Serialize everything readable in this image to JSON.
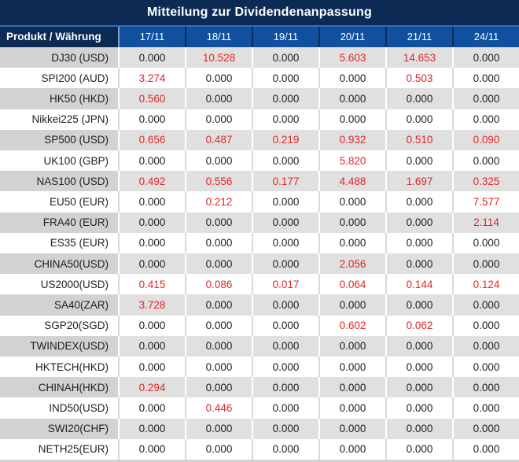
{
  "title": "Mitteilung zur Dividendenanpassung",
  "header": {
    "product_label": "Produkt / Währung",
    "dates": [
      "17/11",
      "18/11",
      "19/11",
      "20/11",
      "21/11",
      "24/11"
    ]
  },
  "colors": {
    "navy": "#0d2a55",
    "blue": "#10509e",
    "red": "#e12626",
    "ink": "#1e1e1e",
    "grayLabel": "#d2d2d2",
    "grayVal": "#e0e0e0"
  },
  "rows": [
    {
      "product": "DJ30 (USD)",
      "values": [
        "0.000",
        "10.528",
        "0.000",
        "5.603",
        "14.653",
        "0.000"
      ],
      "red": [
        0,
        1,
        0,
        1,
        1,
        0
      ]
    },
    {
      "product": "SPI200 (AUD)",
      "values": [
        "3.274",
        "0.000",
        "0.000",
        "0.000",
        "0.503",
        "0.000"
      ],
      "red": [
        1,
        0,
        0,
        0,
        1,
        0
      ]
    },
    {
      "product": "HK50 (HKD)",
      "values": [
        "0.560",
        "0.000",
        "0.000",
        "0.000",
        "0.000",
        "0.000"
      ],
      "red": [
        1,
        0,
        0,
        0,
        0,
        0
      ]
    },
    {
      "product": "Nikkei225 (JPN)",
      "values": [
        "0.000",
        "0.000",
        "0.000",
        "0.000",
        "0.000",
        "0.000"
      ],
      "red": [
        0,
        0,
        0,
        0,
        0,
        0
      ]
    },
    {
      "product": "SP500 (USD)",
      "values": [
        "0.656",
        "0.487",
        "0.219",
        "0.932",
        "0.510",
        "0.090"
      ],
      "red": [
        1,
        1,
        1,
        1,
        1,
        1
      ]
    },
    {
      "product": "UK100 (GBP)",
      "values": [
        "0.000",
        "0.000",
        "0.000",
        "5.820",
        "0.000",
        "0.000"
      ],
      "red": [
        0,
        0,
        0,
        1,
        0,
        0
      ]
    },
    {
      "product": "NAS100 (USD)",
      "values": [
        "0.492",
        "0.556",
        "0.177",
        "4.488",
        "1.697",
        "0.325"
      ],
      "red": [
        1,
        1,
        1,
        1,
        1,
        1
      ]
    },
    {
      "product": "EU50 (EUR)",
      "values": [
        "0.000",
        "0.212",
        "0.000",
        "0.000",
        "0.000",
        "7.577"
      ],
      "red": [
        0,
        1,
        0,
        0,
        0,
        1
      ]
    },
    {
      "product": "FRA40 (EUR)",
      "values": [
        "0.000",
        "0.000",
        "0.000",
        "0.000",
        "0.000",
        "2.114"
      ],
      "red": [
        0,
        0,
        0,
        0,
        0,
        1
      ]
    },
    {
      "product": "ES35 (EUR)",
      "values": [
        "0.000",
        "0.000",
        "0.000",
        "0.000",
        "0.000",
        "0.000"
      ],
      "red": [
        0,
        0,
        0,
        0,
        0,
        0
      ]
    },
    {
      "product": "CHINA50(USD)",
      "values": [
        "0.000",
        "0.000",
        "0.000",
        "2.056",
        "0.000",
        "0.000"
      ],
      "red": [
        0,
        0,
        0,
        1,
        0,
        0
      ]
    },
    {
      "product": "US2000(USD)",
      "values": [
        "0.415",
        "0.086",
        "0.017",
        "0.064",
        "0.144",
        "0.124"
      ],
      "red": [
        1,
        1,
        1,
        1,
        1,
        1
      ]
    },
    {
      "product": "SA40(ZAR)",
      "values": [
        "3.728",
        "0.000",
        "0.000",
        "0.000",
        "0.000",
        "0.000"
      ],
      "red": [
        1,
        0,
        0,
        0,
        0,
        0
      ]
    },
    {
      "product": "SGP20(SGD)",
      "values": [
        "0.000",
        "0.000",
        "0.000",
        "0.602",
        "0.062",
        "0.000"
      ],
      "red": [
        0,
        0,
        0,
        1,
        1,
        0
      ]
    },
    {
      "product": "TWINDEX(USD)",
      "values": [
        "0.000",
        "0.000",
        "0.000",
        "0.000",
        "0.000",
        "0.000"
      ],
      "red": [
        0,
        0,
        0,
        0,
        0,
        0
      ]
    },
    {
      "product": "HKTECH(HKD)",
      "values": [
        "0.000",
        "0.000",
        "0.000",
        "0.000",
        "0.000",
        "0.000"
      ],
      "red": [
        0,
        0,
        0,
        0,
        0,
        0
      ]
    },
    {
      "product": "CHINAH(HKD)",
      "values": [
        "0.294",
        "0.000",
        "0.000",
        "0.000",
        "0.000",
        "0.000"
      ],
      "red": [
        1,
        0,
        0,
        0,
        0,
        0
      ]
    },
    {
      "product": "IND50(USD)",
      "values": [
        "0.000",
        "0.446",
        "0.000",
        "0.000",
        "0.000",
        "0.000"
      ],
      "red": [
        0,
        1,
        0,
        0,
        0,
        0
      ]
    },
    {
      "product": "SWI20(CHF)",
      "values": [
        "0.000",
        "0.000",
        "0.000",
        "0.000",
        "0.000",
        "0.000"
      ],
      "red": [
        0,
        0,
        0,
        0,
        0,
        0
      ]
    },
    {
      "product": "NETH25(EUR)",
      "values": [
        "0.000",
        "0.000",
        "0.000",
        "0.000",
        "0.000",
        "0.000"
      ],
      "red": [
        0,
        0,
        0,
        0,
        0,
        0
      ]
    }
  ]
}
